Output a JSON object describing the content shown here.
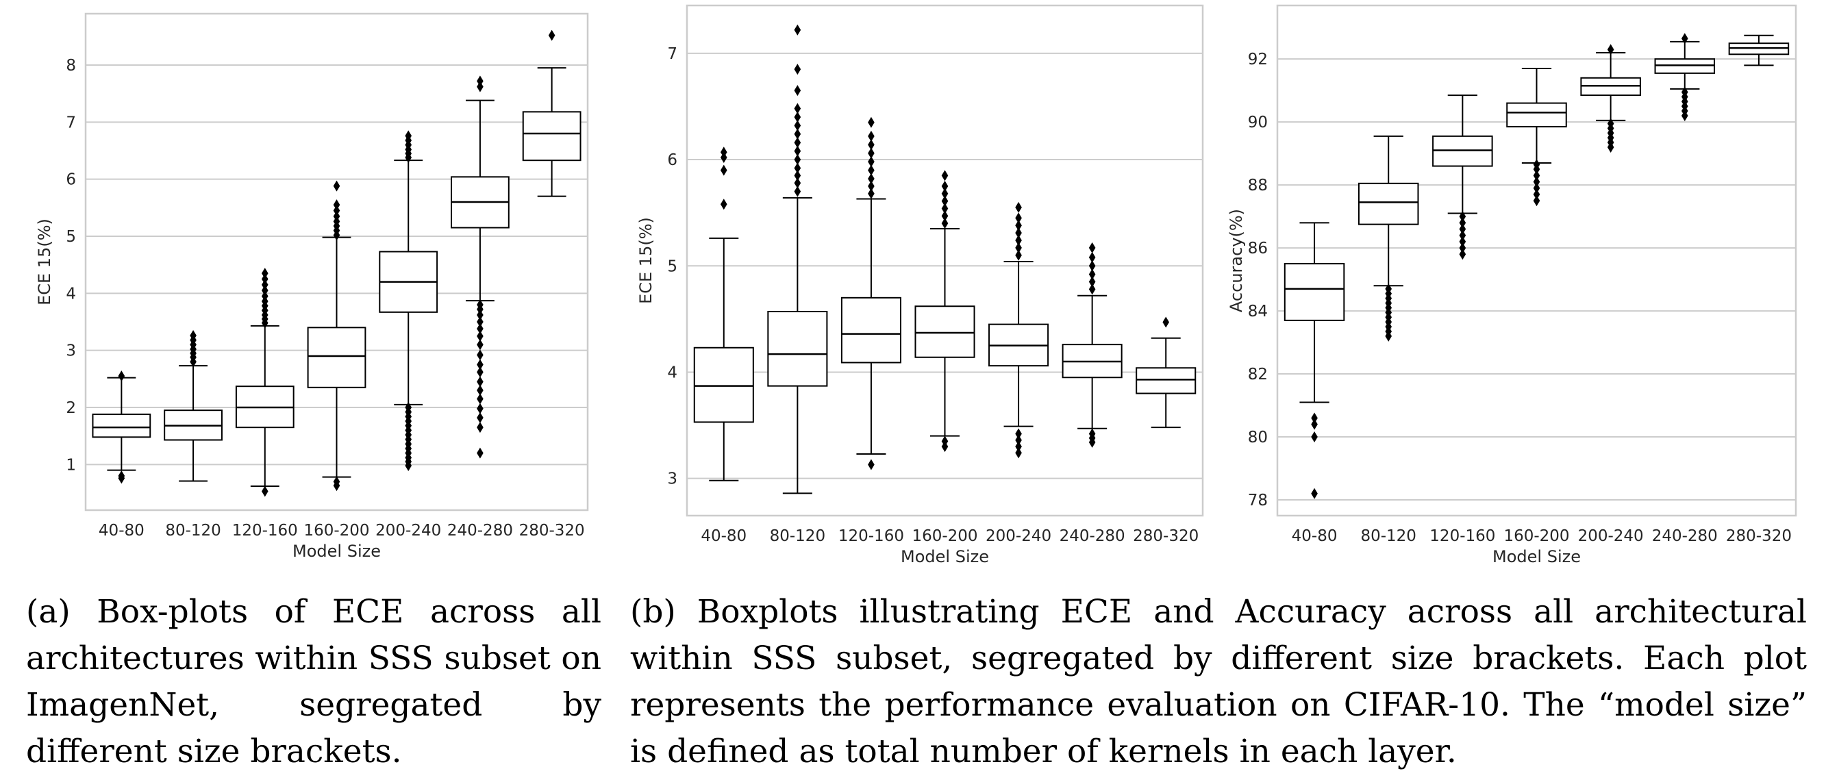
{
  "chart_data": [
    {
      "id": "a",
      "type": "box",
      "title": "",
      "xlabel": "Model Size",
      "ylabel": "ECE 15(%)",
      "categories": [
        "40-80",
        "80-120",
        "120-160",
        "160-200",
        "200-240",
        "240-280",
        "280-320"
      ],
      "ylim": [
        0.2,
        8.9
      ],
      "yticks": [
        1,
        2,
        3,
        4,
        5,
        6,
        7,
        8
      ],
      "grid": "horizontal",
      "boxes": [
        {
          "whislo": 0.9,
          "q1": 1.48,
          "med": 1.65,
          "q3": 1.88,
          "whishi": 2.52,
          "fliers": [
            0.76,
            0.8,
            2.55
          ]
        },
        {
          "whislo": 0.71,
          "q1": 1.43,
          "med": 1.68,
          "q3": 1.95,
          "whishi": 2.73,
          "fliers": [
            2.8,
            2.88,
            2.95,
            3.02,
            3.1,
            3.18,
            3.26
          ]
        },
        {
          "whislo": 0.62,
          "q1": 1.65,
          "med": 2.0,
          "q3": 2.37,
          "whishi": 3.43,
          "fliers": [
            0.53,
            3.48,
            3.55,
            3.62,
            3.7,
            3.78,
            3.86,
            3.95,
            4.05,
            4.15,
            4.25,
            4.35
          ]
        },
        {
          "whislo": 0.78,
          "q1": 2.35,
          "med": 2.9,
          "q3": 3.4,
          "whishi": 4.98,
          "fliers": [
            0.63,
            0.7,
            5.02,
            5.1,
            5.18,
            5.26,
            5.35,
            5.45,
            5.55,
            5.88
          ]
        },
        {
          "whislo": 2.05,
          "q1": 3.67,
          "med": 4.2,
          "q3": 4.73,
          "whishi": 6.33,
          "fliers": [
            0.98,
            1.05,
            1.12,
            1.2,
            1.28,
            1.36,
            1.44,
            1.52,
            1.6,
            1.68,
            1.76,
            1.84,
            1.92,
            2.0,
            6.38,
            6.45,
            6.52,
            6.6,
            6.68,
            6.76
          ]
        },
        {
          "whislo": 3.87,
          "q1": 5.15,
          "med": 5.6,
          "q3": 6.04,
          "whishi": 7.38,
          "fliers": [
            1.2,
            1.65,
            1.82,
            1.98,
            2.15,
            2.3,
            2.45,
            2.62,
            2.75,
            2.92,
            3.1,
            3.25,
            3.38,
            3.5,
            3.62,
            3.72,
            3.8,
            7.62,
            7.72
          ]
        },
        {
          "whislo": 5.7,
          "q1": 6.33,
          "med": 6.8,
          "q3": 7.18,
          "whishi": 7.95,
          "fliers": [
            8.52
          ]
        }
      ]
    },
    {
      "id": "b1",
      "type": "box",
      "title": "",
      "xlabel": "Model Size",
      "ylabel": "ECE 15(%)",
      "categories": [
        "40-80",
        "80-120",
        "120-160",
        "160-200",
        "200-240",
        "240-280",
        "280-320"
      ],
      "ylim": [
        2.65,
        7.45
      ],
      "yticks": [
        3,
        4,
        5,
        6,
        7
      ],
      "grid": "horizontal",
      "boxes": [
        {
          "whislo": 2.98,
          "q1": 3.53,
          "med": 3.87,
          "q3": 4.23,
          "whishi": 5.26,
          "fliers": [
            5.58,
            5.9,
            6.02,
            6.07
          ]
        },
        {
          "whislo": 2.86,
          "q1": 3.87,
          "med": 4.17,
          "q3": 4.57,
          "whishi": 5.64,
          "fliers": [
            5.7,
            5.78,
            5.85,
            5.92,
            6.0,
            6.08,
            6.16,
            6.24,
            6.32,
            6.4,
            6.48,
            6.65,
            6.85,
            7.22
          ]
        },
        {
          "whislo": 3.23,
          "q1": 4.09,
          "med": 4.36,
          "q3": 4.7,
          "whishi": 5.63,
          "fliers": [
            3.13,
            5.68,
            5.75,
            5.82,
            5.9,
            5.98,
            6.06,
            6.14,
            6.22,
            6.35
          ]
        },
        {
          "whislo": 3.4,
          "q1": 4.14,
          "med": 4.37,
          "q3": 4.62,
          "whishi": 5.35,
          "fliers": [
            3.3,
            3.35,
            5.4,
            5.47,
            5.54,
            5.61,
            5.68,
            5.75,
            5.85
          ]
        },
        {
          "whislo": 3.49,
          "q1": 4.06,
          "med": 4.25,
          "q3": 4.45,
          "whishi": 5.04,
          "fliers": [
            3.24,
            3.3,
            3.36,
            3.42,
            5.1,
            5.17,
            5.24,
            5.31,
            5.38,
            5.45,
            5.55
          ]
        },
        {
          "whislo": 3.47,
          "q1": 3.95,
          "med": 4.1,
          "q3": 4.26,
          "whishi": 4.72,
          "fliers": [
            3.34,
            3.38,
            3.42,
            4.78,
            4.85,
            4.92,
            5.0,
            5.08,
            5.17
          ]
        },
        {
          "whislo": 3.48,
          "q1": 3.8,
          "med": 3.93,
          "q3": 4.04,
          "whishi": 4.32,
          "fliers": [
            4.47
          ]
        }
      ]
    },
    {
      "id": "b2",
      "type": "box",
      "title": "",
      "xlabel": "Model Size",
      "ylabel": "Accuracy(%)",
      "categories": [
        "40-80",
        "80-120",
        "120-160",
        "160-200",
        "200-240",
        "240-280",
        "280-320"
      ],
      "ylim": [
        77.5,
        93.7
      ],
      "yticks": [
        78,
        80,
        82,
        84,
        86,
        88,
        90,
        92
      ],
      "grid": "horizontal",
      "boxes": [
        {
          "whislo": 81.1,
          "q1": 83.7,
          "med": 84.7,
          "q3": 85.5,
          "whishi": 86.8,
          "fliers": [
            78.2,
            80.0,
            80.4,
            80.6
          ]
        },
        {
          "whislo": 84.8,
          "q1": 86.75,
          "med": 87.45,
          "q3": 88.05,
          "whishi": 89.55,
          "fliers": [
            83.2,
            83.35,
            83.5,
            83.65,
            83.8,
            83.95,
            84.1,
            84.25,
            84.4,
            84.55,
            84.7
          ]
        },
        {
          "whislo": 87.1,
          "q1": 88.6,
          "med": 89.1,
          "q3": 89.55,
          "whishi": 90.85,
          "fliers": [
            85.8,
            86.0,
            86.2,
            86.4,
            86.6,
            86.8,
            87.0
          ]
        },
        {
          "whislo": 88.7,
          "q1": 89.85,
          "med": 90.3,
          "q3": 90.6,
          "whishi": 91.7,
          "fliers": [
            87.5,
            87.7,
            87.9,
            88.1,
            88.3,
            88.5,
            88.65
          ]
        },
        {
          "whislo": 90.05,
          "q1": 90.85,
          "med": 91.15,
          "q3": 91.4,
          "whishi": 92.2,
          "fliers": [
            89.2,
            89.35,
            89.5,
            89.65,
            89.8,
            89.95,
            92.3
          ]
        },
        {
          "whislo": 91.05,
          "q1": 91.55,
          "med": 91.8,
          "q3": 92.0,
          "whishi": 92.55,
          "fliers": [
            90.2,
            90.35,
            90.5,
            90.65,
            90.8,
            90.95,
            92.65
          ]
        },
        {
          "whislo": 91.8,
          "q1": 92.15,
          "med": 92.35,
          "q3": 92.5,
          "whishi": 92.75,
          "fliers": []
        }
      ]
    }
  ],
  "captions": {
    "a": "(a) Box-plots of ECE across all architectures within SSS subset on ImagenNet, segregated by different size brackets.",
    "b": "(b) Boxplots illustrating ECE and Accuracy across all architectural within SSS subset, segregated by different size brackets. Each plot represents the performance evaluation on CIFAR-10. The “model size” is defined as total number of kernels in each layer."
  }
}
